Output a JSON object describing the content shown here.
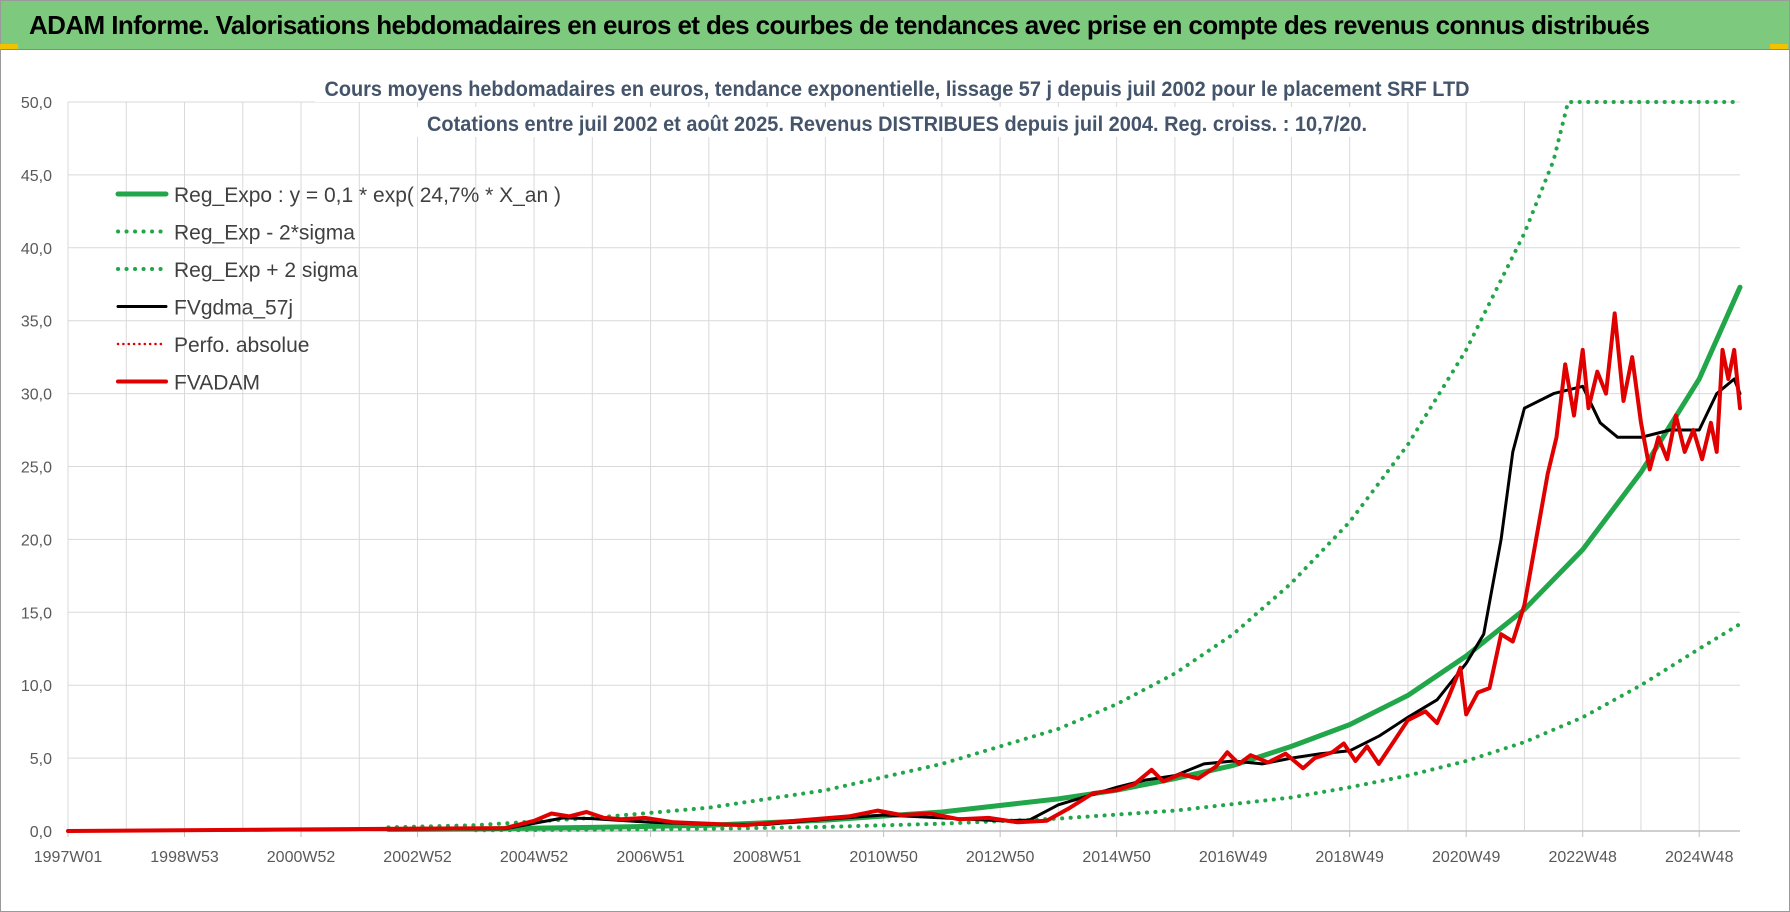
{
  "header": {
    "banner_title": "ADAM Informe. Valorisations hebdomadaires en euros et des courbes de tendances avec prise en compte des revenus connus distribués"
  },
  "chart_data": {
    "type": "line",
    "title": "Cours moyens hebdomadaires en euros, tendance exponentielle, lissage 57 j depuis juil 2002 pour le placement SRF LTD",
    "subtitle": "Cotations entre juil 2002 et août 2025. Revenus DISTRIBUES depuis juil 2004. Reg. croiss. : 10,7/20.",
    "xlabel": "",
    "ylabel": "",
    "ylim": [
      0,
      50
    ],
    "y_ticks": [
      "0,0",
      "5,0",
      "10,0",
      "15,0",
      "20,0",
      "25,0",
      "30,0",
      "35,0",
      "40,0",
      "45,0",
      "50,0"
    ],
    "x_range": [
      1997.0,
      2025.7
    ],
    "x_ticks": [
      {
        "label": "1997W01",
        "x": 1997.0
      },
      {
        "label": "1998W53",
        "x": 1999.0
      },
      {
        "label": "2000W52",
        "x": 2001.0
      },
      {
        "label": "2002W52",
        "x": 2003.0
      },
      {
        "label": "2004W52",
        "x": 2005.0
      },
      {
        "label": "2006W51",
        "x": 2007.0
      },
      {
        "label": "2008W51",
        "x": 2009.0
      },
      {
        "label": "2010W50",
        "x": 2011.0
      },
      {
        "label": "2012W50",
        "x": 2013.0
      },
      {
        "label": "2014W50",
        "x": 2015.0
      },
      {
        "label": "2016W49",
        "x": 2017.0
      },
      {
        "label": "2018W49",
        "x": 2019.0
      },
      {
        "label": "2020W49",
        "x": 2021.0
      },
      {
        "label": "2022W48",
        "x": 2023.0
      },
      {
        "label": "2024W48",
        "x": 2025.0
      }
    ],
    "grid": true,
    "legend_position": "top-left",
    "legend": [
      {
        "label": "Reg_Expo : y = 0,1 * exp( 24,7% *  X_an )",
        "color": "#22a64a",
        "style": "solid",
        "width": 5
      },
      {
        "label": "Reg_Exp - 2*sigma",
        "color": "#22a64a",
        "style": "dotted",
        "width": 4
      },
      {
        "label": "Reg_Exp + 2 sigma",
        "color": "#22a64a",
        "style": "dotted",
        "width": 4
      },
      {
        "label": "FVgdma_57j",
        "color": "#000000",
        "style": "solid",
        "width": 3
      },
      {
        "label": "Perfo. absolue",
        "color": "#e00000",
        "style": "dotted",
        "width": 2.5
      },
      {
        "label": "FVADAM",
        "color": "#e00000",
        "style": "solid",
        "width": 4
      }
    ],
    "series": [
      {
        "name": "Reg_Expo : y = 0,1 * exp( 24,7% *  X_an )",
        "color": "#22a64a",
        "style": "solid",
        "width": 5,
        "points": [
          [
            2002.5,
            0.1
          ],
          [
            2004,
            0.14
          ],
          [
            2006,
            0.25
          ],
          [
            2008,
            0.4
          ],
          [
            2010,
            0.75
          ],
          [
            2012,
            1.3
          ],
          [
            2014,
            2.2
          ],
          [
            2015,
            2.8
          ],
          [
            2016,
            3.6
          ],
          [
            2017,
            4.5
          ],
          [
            2018,
            5.8
          ],
          [
            2019,
            7.3
          ],
          [
            2020,
            9.3
          ],
          [
            2021,
            12.0
          ],
          [
            2022,
            15.2
          ],
          [
            2023,
            19.3
          ],
          [
            2024,
            24.6
          ],
          [
            2025,
            31.0
          ],
          [
            2025.7,
            37.3
          ]
        ]
      },
      {
        "name": "Reg_Exp - 2*sigma",
        "color": "#22a64a",
        "style": "dotted",
        "width": 4,
        "points": [
          [
            2004,
            0.05
          ],
          [
            2006,
            0.09
          ],
          [
            2008,
            0.15
          ],
          [
            2010,
            0.28
          ],
          [
            2012,
            0.5
          ],
          [
            2014,
            0.85
          ],
          [
            2016,
            1.4
          ],
          [
            2018,
            2.3
          ],
          [
            2019,
            3.0
          ],
          [
            2020,
            3.8
          ],
          [
            2021,
            4.8
          ],
          [
            2022,
            6.1
          ],
          [
            2023,
            7.8
          ],
          [
            2024,
            10.0
          ],
          [
            2025,
            12.5
          ],
          [
            2025.7,
            14.2
          ]
        ]
      },
      {
        "name": "Reg_Exp + 2 sigma",
        "color": "#22a64a",
        "style": "dotted",
        "width": 4,
        "points": [
          [
            2002.5,
            0.25
          ],
          [
            2004,
            0.4
          ],
          [
            2006,
            0.9
          ],
          [
            2008,
            1.6
          ],
          [
            2010,
            2.8
          ],
          [
            2012,
            4.6
          ],
          [
            2014,
            7.0
          ],
          [
            2015,
            8.7
          ],
          [
            2016,
            10.8
          ],
          [
            2017,
            13.5
          ],
          [
            2018,
            17.0
          ],
          [
            2019,
            21.2
          ],
          [
            2020,
            26.5
          ],
          [
            2021,
            33.0
          ],
          [
            2022,
            41.0
          ],
          [
            2022.5,
            46.0
          ],
          [
            2022.75,
            50.0
          ],
          [
            2025.7,
            50.0
          ]
        ]
      },
      {
        "name": "FVgdma_57j",
        "color": "#000000",
        "style": "solid",
        "width": 3,
        "points": [
          [
            1997.0,
            0
          ],
          [
            2004.5,
            0.15
          ],
          [
            2005.5,
            0.9
          ],
          [
            2006,
            0.85
          ],
          [
            2007,
            0.6
          ],
          [
            2008,
            0.45
          ],
          [
            2009,
            0.45
          ],
          [
            2010,
            0.8
          ],
          [
            2011,
            1.1
          ],
          [
            2012,
            0.9
          ],
          [
            2013,
            0.7
          ],
          [
            2013.5,
            0.75
          ],
          [
            2014,
            1.8
          ],
          [
            2015,
            3.0
          ],
          [
            2015.5,
            3.5
          ],
          [
            2016,
            3.8
          ],
          [
            2016.5,
            4.6
          ],
          [
            2017,
            4.8
          ],
          [
            2017.5,
            4.6
          ],
          [
            2018,
            5.0
          ],
          [
            2018.5,
            5.3
          ],
          [
            2019,
            5.5
          ],
          [
            2019.5,
            6.5
          ],
          [
            2020,
            7.8
          ],
          [
            2020.5,
            9.0
          ],
          [
            2021,
            11.5
          ],
          [
            2021.3,
            13.5
          ],
          [
            2021.6,
            20.0
          ],
          [
            2021.8,
            26.0
          ],
          [
            2022,
            29.0
          ],
          [
            2022.5,
            30.0
          ],
          [
            2023,
            30.5
          ],
          [
            2023.3,
            28.0
          ],
          [
            2023.6,
            27.0
          ],
          [
            2024,
            27.0
          ],
          [
            2024.5,
            27.5
          ],
          [
            2025,
            27.5
          ],
          [
            2025.3,
            30.0
          ],
          [
            2025.6,
            31.0
          ],
          [
            2025.7,
            30.0
          ]
        ]
      },
      {
        "name": "FVADAM",
        "color": "#e00000",
        "style": "solid",
        "width": 4,
        "points": [
          [
            1997.0,
            0
          ],
          [
            2004.5,
            0.2
          ],
          [
            2005.0,
            0.7
          ],
          [
            2005.3,
            1.2
          ],
          [
            2005.6,
            1.0
          ],
          [
            2005.9,
            1.3
          ],
          [
            2006.2,
            0.9
          ],
          [
            2006.5,
            0.8
          ],
          [
            2006.9,
            0.9
          ],
          [
            2007.4,
            0.6
          ],
          [
            2008.0,
            0.5
          ],
          [
            2008.6,
            0.4
          ],
          [
            2009.2,
            0.6
          ],
          [
            2009.8,
            0.8
          ],
          [
            2010.4,
            1.0
          ],
          [
            2010.9,
            1.4
          ],
          [
            2011.3,
            1.1
          ],
          [
            2011.8,
            1.2
          ],
          [
            2012.3,
            0.8
          ],
          [
            2012.8,
            0.9
          ],
          [
            2013.3,
            0.6
          ],
          [
            2013.8,
            0.7
          ],
          [
            2014.2,
            1.6
          ],
          [
            2014.6,
            2.6
          ],
          [
            2015.0,
            2.8
          ],
          [
            2015.3,
            3.2
          ],
          [
            2015.6,
            4.2
          ],
          [
            2015.8,
            3.4
          ],
          [
            2016.1,
            3.9
          ],
          [
            2016.4,
            3.6
          ],
          [
            2016.7,
            4.4
          ],
          [
            2016.9,
            5.4
          ],
          [
            2017.1,
            4.6
          ],
          [
            2017.3,
            5.2
          ],
          [
            2017.6,
            4.7
          ],
          [
            2017.9,
            5.3
          ],
          [
            2018.2,
            4.3
          ],
          [
            2018.4,
            5.0
          ],
          [
            2018.7,
            5.4
          ],
          [
            2018.9,
            6.0
          ],
          [
            2019.1,
            4.8
          ],
          [
            2019.3,
            5.8
          ],
          [
            2019.5,
            4.6
          ],
          [
            2019.7,
            5.8
          ],
          [
            2020.0,
            7.6
          ],
          [
            2020.3,
            8.2
          ],
          [
            2020.5,
            7.4
          ],
          [
            2020.7,
            9.2
          ],
          [
            2020.9,
            11.2
          ],
          [
            2021.0,
            8.0
          ],
          [
            2021.2,
            9.5
          ],
          [
            2021.4,
            9.8
          ],
          [
            2021.6,
            13.5
          ],
          [
            2021.8,
            13.0
          ],
          [
            2022.0,
            15.5
          ],
          [
            2022.2,
            20.0
          ],
          [
            2022.4,
            24.5
          ],
          [
            2022.55,
            27.0
          ],
          [
            2022.7,
            32.0
          ],
          [
            2022.85,
            28.5
          ],
          [
            2023.0,
            33.0
          ],
          [
            2023.1,
            29.0
          ],
          [
            2023.25,
            31.5
          ],
          [
            2023.4,
            30.0
          ],
          [
            2023.55,
            35.5
          ],
          [
            2023.7,
            29.5
          ],
          [
            2023.85,
            32.5
          ],
          [
            2024.0,
            28.0
          ],
          [
            2024.15,
            24.8
          ],
          [
            2024.3,
            27.0
          ],
          [
            2024.45,
            25.5
          ],
          [
            2024.6,
            28.5
          ],
          [
            2024.75,
            26.0
          ],
          [
            2024.9,
            27.5
          ],
          [
            2025.05,
            25.5
          ],
          [
            2025.2,
            28.0
          ],
          [
            2025.3,
            26.0
          ],
          [
            2025.4,
            33.0
          ],
          [
            2025.5,
            31.0
          ],
          [
            2025.6,
            33.0
          ],
          [
            2025.7,
            29.0
          ]
        ]
      }
    ]
  }
}
